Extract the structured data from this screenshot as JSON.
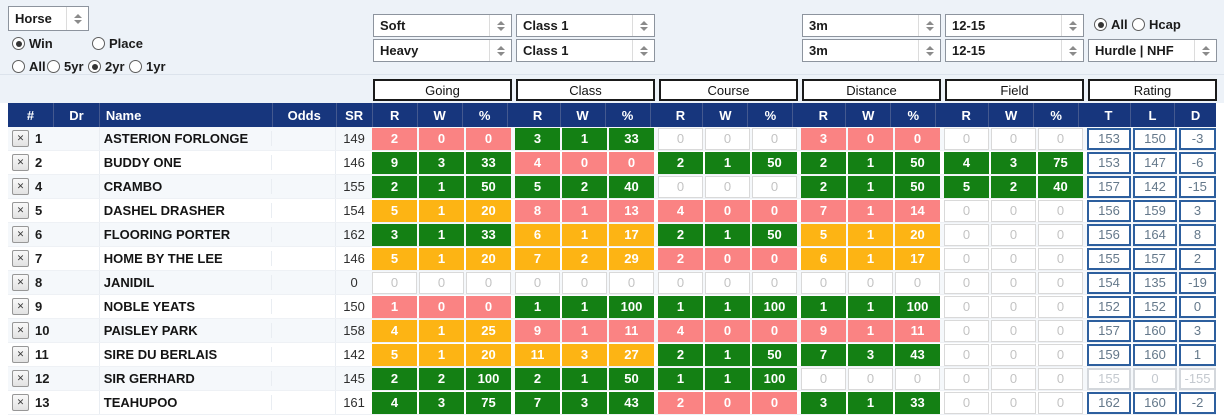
{
  "colors": {
    "header_navy": "#17367d",
    "green": "#148014",
    "red": "#fa8383",
    "orange": "#fdb414",
    "rating_border": "#2d5f9e",
    "filter_bg": "#edf2f8"
  },
  "icons": {
    "remove": "✕",
    "spinner": "up-down-arrows"
  },
  "filters": {
    "mode": {
      "value": "Horse"
    },
    "bet_type": {
      "options": [
        "Win",
        "Place"
      ],
      "selected": "Win"
    },
    "age": {
      "options": [
        "All",
        "5yr",
        "2yr",
        "1yr"
      ],
      "selected": "2yr"
    },
    "going": {
      "values": [
        "Soft",
        "Heavy"
      ]
    },
    "race_class": {
      "values": [
        "Class 1",
        "Class 1"
      ]
    },
    "distance": {
      "values": [
        "3m",
        "3m"
      ]
    },
    "field_size": {
      "values": [
        "12-15",
        "12-15"
      ]
    },
    "hcap": {
      "options": [
        "All",
        "Hcap"
      ],
      "selected": "All"
    },
    "race_type": {
      "value": "Hurdle | NHF"
    }
  },
  "table": {
    "group_headers": [
      "Going",
      "Class",
      "Course",
      "Distance",
      "Field",
      "Rating"
    ],
    "left_columns": [
      "#",
      "Dr",
      "Name",
      "Odds",
      "SR"
    ],
    "stat_columns": [
      "R",
      "W",
      "%"
    ],
    "rating_columns": [
      "T",
      "L",
      "D"
    ],
    "rows": [
      {
        "num": "1",
        "dr": "",
        "name": "ASTERION FORLONGE",
        "odds": "",
        "sr": "149",
        "stats": [
          {
            "r": "2",
            "w": "0",
            "pct": "0",
            "color": "red"
          },
          {
            "r": "3",
            "w": "1",
            "pct": "33",
            "color": "green"
          },
          {
            "r": "0",
            "w": "0",
            "pct": "0",
            "color": "none"
          },
          {
            "r": "3",
            "w": "0",
            "pct": "0",
            "color": "red"
          },
          {
            "r": "0",
            "w": "0",
            "pct": "0",
            "color": "none"
          }
        ],
        "rating": {
          "t": "153",
          "l": "150",
          "d": "-3",
          "muted": false
        }
      },
      {
        "num": "2",
        "dr": "",
        "name": "BUDDY ONE",
        "odds": "",
        "sr": "146",
        "stats": [
          {
            "r": "9",
            "w": "3",
            "pct": "33",
            "color": "green"
          },
          {
            "r": "4",
            "w": "0",
            "pct": "0",
            "color": "red"
          },
          {
            "r": "2",
            "w": "1",
            "pct": "50",
            "color": "green"
          },
          {
            "r": "2",
            "w": "1",
            "pct": "50",
            "color": "green"
          },
          {
            "r": "4",
            "w": "3",
            "pct": "75",
            "color": "green"
          }
        ],
        "rating": {
          "t": "153",
          "l": "147",
          "d": "-6",
          "muted": false
        }
      },
      {
        "num": "4",
        "dr": "",
        "name": "CRAMBO",
        "odds": "",
        "sr": "155",
        "stats": [
          {
            "r": "2",
            "w": "1",
            "pct": "50",
            "color": "green"
          },
          {
            "r": "5",
            "w": "2",
            "pct": "40",
            "color": "green"
          },
          {
            "r": "0",
            "w": "0",
            "pct": "0",
            "color": "none"
          },
          {
            "r": "2",
            "w": "1",
            "pct": "50",
            "color": "green"
          },
          {
            "r": "5",
            "w": "2",
            "pct": "40",
            "color": "green"
          }
        ],
        "rating": {
          "t": "157",
          "l": "142",
          "d": "-15",
          "muted": false
        }
      },
      {
        "num": "5",
        "dr": "",
        "name": "DASHEL DRASHER",
        "odds": "",
        "sr": "154",
        "stats": [
          {
            "r": "5",
            "w": "1",
            "pct": "20",
            "color": "orange"
          },
          {
            "r": "8",
            "w": "1",
            "pct": "13",
            "color": "red"
          },
          {
            "r": "4",
            "w": "0",
            "pct": "0",
            "color": "red"
          },
          {
            "r": "7",
            "w": "1",
            "pct": "14",
            "color": "red"
          },
          {
            "r": "0",
            "w": "0",
            "pct": "0",
            "color": "none"
          }
        ],
        "rating": {
          "t": "156",
          "l": "159",
          "d": "3",
          "muted": false
        }
      },
      {
        "num": "6",
        "dr": "",
        "name": "FLOORING PORTER",
        "odds": "",
        "sr": "162",
        "stats": [
          {
            "r": "3",
            "w": "1",
            "pct": "33",
            "color": "green"
          },
          {
            "r": "6",
            "w": "1",
            "pct": "17",
            "color": "orange"
          },
          {
            "r": "2",
            "w": "1",
            "pct": "50",
            "color": "green"
          },
          {
            "r": "5",
            "w": "1",
            "pct": "20",
            "color": "orange"
          },
          {
            "r": "0",
            "w": "0",
            "pct": "0",
            "color": "none"
          }
        ],
        "rating": {
          "t": "156",
          "l": "164",
          "d": "8",
          "muted": false
        }
      },
      {
        "num": "7",
        "dr": "",
        "name": "HOME BY THE LEE",
        "odds": "",
        "sr": "146",
        "stats": [
          {
            "r": "5",
            "w": "1",
            "pct": "20",
            "color": "orange"
          },
          {
            "r": "7",
            "w": "2",
            "pct": "29",
            "color": "orange"
          },
          {
            "r": "2",
            "w": "0",
            "pct": "0",
            "color": "red"
          },
          {
            "r": "6",
            "w": "1",
            "pct": "17",
            "color": "orange"
          },
          {
            "r": "0",
            "w": "0",
            "pct": "0",
            "color": "none"
          }
        ],
        "rating": {
          "t": "155",
          "l": "157",
          "d": "2",
          "muted": false
        }
      },
      {
        "num": "8",
        "dr": "",
        "name": "JANIDIL",
        "odds": "",
        "sr": "0",
        "stats": [
          {
            "r": "0",
            "w": "0",
            "pct": "0",
            "color": "none"
          },
          {
            "r": "0",
            "w": "0",
            "pct": "0",
            "color": "none"
          },
          {
            "r": "0",
            "w": "0",
            "pct": "0",
            "color": "none"
          },
          {
            "r": "0",
            "w": "0",
            "pct": "0",
            "color": "none"
          },
          {
            "r": "0",
            "w": "0",
            "pct": "0",
            "color": "none"
          }
        ],
        "rating": {
          "t": "154",
          "l": "135",
          "d": "-19",
          "muted": false
        }
      },
      {
        "num": "9",
        "dr": "",
        "name": "NOBLE YEATS",
        "odds": "",
        "sr": "150",
        "stats": [
          {
            "r": "1",
            "w": "0",
            "pct": "0",
            "color": "red"
          },
          {
            "r": "1",
            "w": "1",
            "pct": "100",
            "color": "green"
          },
          {
            "r": "1",
            "w": "1",
            "pct": "100",
            "color": "green"
          },
          {
            "r": "1",
            "w": "1",
            "pct": "100",
            "color": "green"
          },
          {
            "r": "0",
            "w": "0",
            "pct": "0",
            "color": "none"
          }
        ],
        "rating": {
          "t": "152",
          "l": "152",
          "d": "0",
          "muted": false
        }
      },
      {
        "num": "10",
        "dr": "",
        "name": "PAISLEY PARK",
        "odds": "",
        "sr": "158",
        "stats": [
          {
            "r": "4",
            "w": "1",
            "pct": "25",
            "color": "orange"
          },
          {
            "r": "9",
            "w": "1",
            "pct": "11",
            "color": "red"
          },
          {
            "r": "4",
            "w": "0",
            "pct": "0",
            "color": "red"
          },
          {
            "r": "9",
            "w": "1",
            "pct": "11",
            "color": "red"
          },
          {
            "r": "0",
            "w": "0",
            "pct": "0",
            "color": "none"
          }
        ],
        "rating": {
          "t": "157",
          "l": "160",
          "d": "3",
          "muted": false
        }
      },
      {
        "num": "11",
        "dr": "",
        "name": "SIRE DU BERLAIS",
        "odds": "",
        "sr": "142",
        "stats": [
          {
            "r": "5",
            "w": "1",
            "pct": "20",
            "color": "orange"
          },
          {
            "r": "11",
            "w": "3",
            "pct": "27",
            "color": "orange"
          },
          {
            "r": "2",
            "w": "1",
            "pct": "50",
            "color": "green"
          },
          {
            "r": "7",
            "w": "3",
            "pct": "43",
            "color": "green"
          },
          {
            "r": "0",
            "w": "0",
            "pct": "0",
            "color": "none"
          }
        ],
        "rating": {
          "t": "159",
          "l": "160",
          "d": "1",
          "muted": false
        }
      },
      {
        "num": "12",
        "dr": "",
        "name": "SIR GERHARD",
        "odds": "",
        "sr": "145",
        "stats": [
          {
            "r": "2",
            "w": "2",
            "pct": "100",
            "color": "green"
          },
          {
            "r": "2",
            "w": "1",
            "pct": "50",
            "color": "green"
          },
          {
            "r": "1",
            "w": "1",
            "pct": "100",
            "color": "green"
          },
          {
            "r": "0",
            "w": "0",
            "pct": "0",
            "color": "none"
          },
          {
            "r": "0",
            "w": "0",
            "pct": "0",
            "color": "none"
          }
        ],
        "rating": {
          "t": "155",
          "l": "0",
          "d": "-155",
          "muted": true
        }
      },
      {
        "num": "13",
        "dr": "",
        "name": "TEAHUPOO",
        "odds": "",
        "sr": "161",
        "stats": [
          {
            "r": "4",
            "w": "3",
            "pct": "75",
            "color": "green"
          },
          {
            "r": "7",
            "w": "3",
            "pct": "43",
            "color": "green"
          },
          {
            "r": "2",
            "w": "0",
            "pct": "0",
            "color": "red"
          },
          {
            "r": "3",
            "w": "1",
            "pct": "33",
            "color": "green"
          },
          {
            "r": "0",
            "w": "0",
            "pct": "0",
            "color": "none"
          }
        ],
        "rating": {
          "t": "162",
          "l": "160",
          "d": "-2",
          "muted": false
        }
      }
    ]
  }
}
